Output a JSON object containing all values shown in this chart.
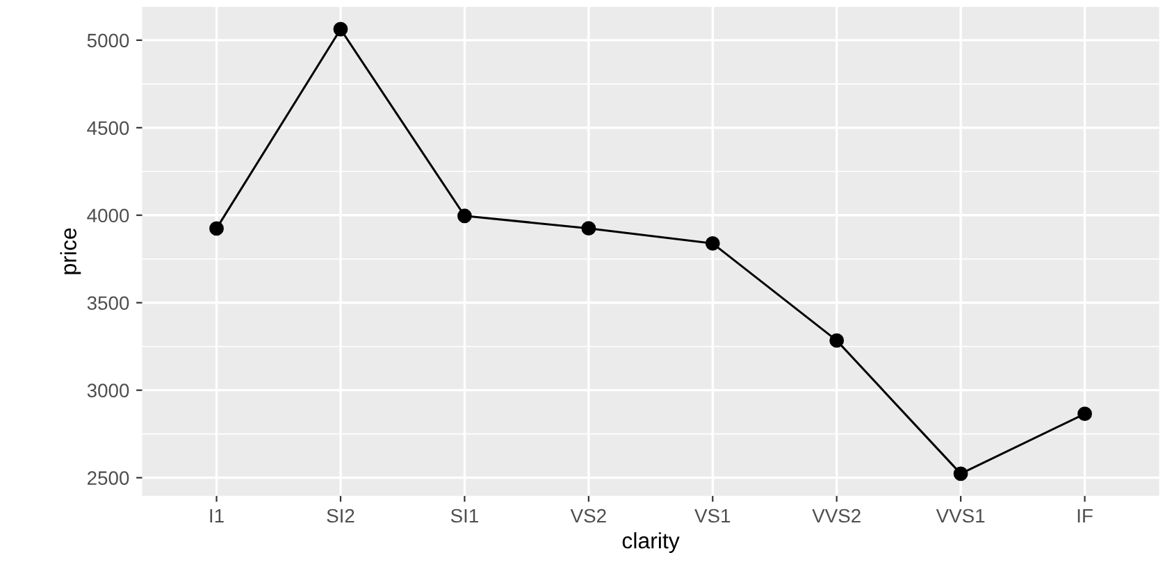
{
  "chart_data": {
    "type": "line",
    "xlabel": "clarity",
    "ylabel": "price",
    "categories": [
      "I1",
      "SI2",
      "SI1",
      "VS2",
      "VS1",
      "VVS2",
      "VVS1",
      "IF"
    ],
    "series": [
      {
        "color": "#000000",
        "values": [
          3924,
          5063,
          3996,
          3925,
          3839,
          3284,
          2523,
          2865
        ]
      }
    ],
    "ylim": [
      2396,
      5190
    ],
    "yticks": [
      2500,
      3000,
      3500,
      4000,
      4500,
      5000
    ],
    "grid": true,
    "marker": "circle",
    "line_style": "solid"
  }
}
